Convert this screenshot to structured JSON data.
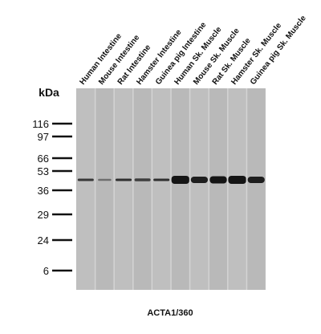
{
  "lanes": [
    "Human Intestine",
    "Mouse Intestine",
    "Rat Intestine",
    "Hamster Intestine",
    "Guinea pig Intestine",
    "Human Sk. Muscle",
    "Mouse Sk. Muscle",
    "Rat Sk. Muscle",
    "Hamster Sk. Muscle",
    "Guinea pig Sk. Muscle"
  ],
  "unit_label": "kDa",
  "markers": [
    116,
    97,
    66,
    53,
    36,
    29,
    24,
    6
  ],
  "caption": "ACTA1/360"
}
